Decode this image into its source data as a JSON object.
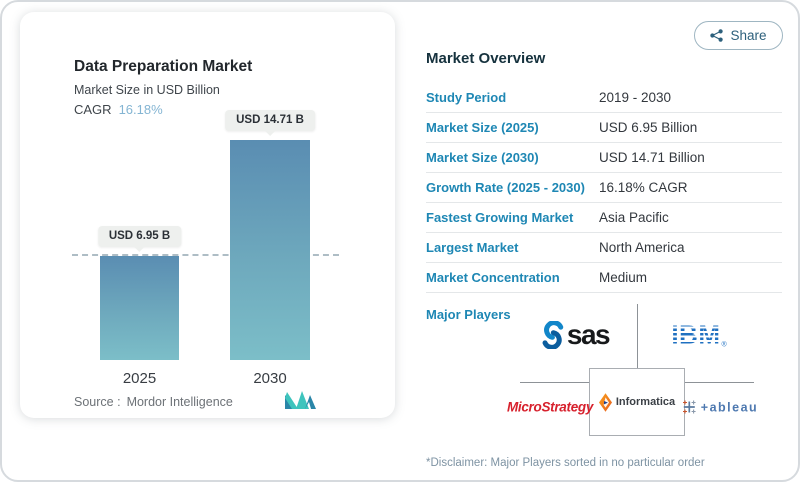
{
  "share": {
    "label": "Share"
  },
  "chart": {
    "title": "Data Preparation Market",
    "subtitle": "Market Size in USD Billion",
    "cagr_label": "CAGR",
    "cagr_value": "16.18%",
    "source_label": "Source :",
    "source_value": "Mordor Intelligence",
    "bars": [
      {
        "year": "2025",
        "label": "USD 6.95 B"
      },
      {
        "year": "2030",
        "label": "USD 14.71 B"
      }
    ]
  },
  "chart_data": {
    "type": "bar",
    "categories": [
      "2025",
      "2030"
    ],
    "values": [
      6.95,
      14.71
    ],
    "title": "Data Preparation Market",
    "subtitle": "Market Size in USD Billion",
    "xlabel": "",
    "ylabel": "Market Size in USD Billion",
    "ylim": [
      0,
      16
    ],
    "data_labels": [
      "USD 6.95 B",
      "USD 14.71 B"
    ],
    "cagr": "16.18%",
    "reference_line": 6.95,
    "grid": false,
    "legend": false,
    "source": "Mordor Intelligence",
    "bar_gradient": [
      "#5a8db2",
      "#7cbec8"
    ]
  },
  "overview": {
    "title": "Market Overview",
    "rows": [
      {
        "label": "Study Period",
        "value": "2019 - 2030"
      },
      {
        "label": "Market Size (2025)",
        "value": "USD 6.95 Billion"
      },
      {
        "label": "Market Size (2030)",
        "value": "USD 14.71 Billion"
      },
      {
        "label": "Growth Rate (2025 - 2030)",
        "value": "16.18% CAGR"
      },
      {
        "label": "Fastest Growing Market",
        "value": "Asia Pacific"
      },
      {
        "label": "Largest Market",
        "value": "North America"
      },
      {
        "label": "Market Concentration",
        "value": "Medium"
      }
    ],
    "major_players_label": "Major Players",
    "players": [
      {
        "name": "SAS",
        "display": "sas"
      },
      {
        "name": "IBM",
        "display": "IBM"
      },
      {
        "name": "MicroStrategy",
        "display": "MicroStrategy"
      },
      {
        "name": "Informatica",
        "display": "Informatica"
      },
      {
        "name": "Tableau",
        "display": "+ableau"
      }
    ],
    "disclaimer": "*Disclaimer: Major Players sorted in no particular order"
  },
  "colors": {
    "accent_blue": "#1e87b4",
    "cagr_blue": "#84b5d3",
    "bar_top": "#5a8db2",
    "bar_bottom": "#7cbec8",
    "share_text": "#2d607c",
    "ibm_blue": "#1f70c1",
    "microstrategy_red": "#d7212d",
    "sas_blue": "#0d7ec2",
    "informatica_orange": "#f6862b"
  }
}
